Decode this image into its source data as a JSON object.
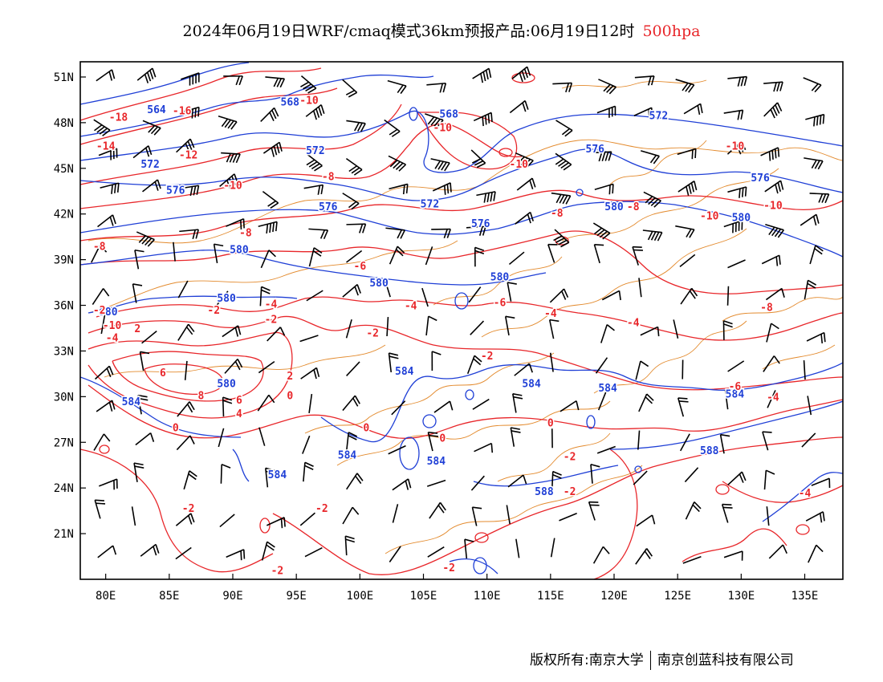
{
  "title": {
    "main": "2024年06月19日WRF/cmaq模式36km预报产品:06月19日12时",
    "level": "500hpa"
  },
  "axes": {
    "x_ticks": [
      "80E",
      "85E",
      "90E",
      "95E",
      "100E",
      "105E",
      "110E",
      "115E",
      "120E",
      "125E",
      "130E",
      "135E"
    ],
    "y_ticks": [
      "51N",
      "48N",
      "45N",
      "42N",
      "39N",
      "36N",
      "33N",
      "30N",
      "27N",
      "24N",
      "21N"
    ]
  },
  "colors": {
    "temperature": "#e8262a",
    "geopotential": "#1f3fd6",
    "boundary": "#e38a2d",
    "wind": "#000000"
  },
  "contour_labels": {
    "geopotential": [
      {
        "text": "564",
        "lon": 84.0,
        "lat": 48.9
      },
      {
        "text": "568",
        "lon": 94.5,
        "lat": 49.4
      },
      {
        "text": "568",
        "lon": 107.0,
        "lat": 48.6
      },
      {
        "text": "572",
        "lon": 83.5,
        "lat": 45.3
      },
      {
        "text": "572",
        "lon": 96.5,
        "lat": 46.2
      },
      {
        "text": "572",
        "lon": 105.5,
        "lat": 42.7
      },
      {
        "text": "572",
        "lon": 123.5,
        "lat": 48.5
      },
      {
        "text": "576",
        "lon": 85.5,
        "lat": 43.6
      },
      {
        "text": "576",
        "lon": 97.5,
        "lat": 42.5
      },
      {
        "text": "576",
        "lon": 109.5,
        "lat": 41.4
      },
      {
        "text": "576",
        "lon": 118.5,
        "lat": 46.3
      },
      {
        "text": "576",
        "lon": 131.5,
        "lat": 44.4
      },
      {
        "text": "580",
        "lon": 90.5,
        "lat": 39.7
      },
      {
        "text": "580",
        "lon": 89.5,
        "lat": 36.5
      },
      {
        "text": "580",
        "lon": 101.5,
        "lat": 37.5
      },
      {
        "text": "580",
        "lon": 111.0,
        "lat": 37.9
      },
      {
        "text": "580",
        "lon": 120.0,
        "lat": 42.5
      },
      {
        "text": "580",
        "lon": 130.0,
        "lat": 41.8
      },
      {
        "text": "580",
        "lon": 80.2,
        "lat": 35.6
      },
      {
        "text": "580",
        "lon": 89.5,
        "lat": 30.9
      },
      {
        "text": "584",
        "lon": 82.0,
        "lat": 29.7
      },
      {
        "text": "584",
        "lon": 93.5,
        "lat": 24.9
      },
      {
        "text": "584",
        "lon": 99.0,
        "lat": 26.2
      },
      {
        "text": "584",
        "lon": 103.5,
        "lat": 31.7
      },
      {
        "text": "584",
        "lon": 106.0,
        "lat": 25.8
      },
      {
        "text": "584",
        "lon": 113.5,
        "lat": 30.9
      },
      {
        "text": "584",
        "lon": 119.5,
        "lat": 30.6
      },
      {
        "text": "584",
        "lon": 129.5,
        "lat": 30.2
      },
      {
        "text": "588",
        "lon": 127.5,
        "lat": 26.5
      },
      {
        "text": "588",
        "lon": 114.5,
        "lat": 23.8
      }
    ],
    "temperature": [
      {
        "text": "-18",
        "lon": 81.0,
        "lat": 48.4
      },
      {
        "text": "-16",
        "lon": 86.0,
        "lat": 48.8
      },
      {
        "text": "-14",
        "lon": 80.0,
        "lat": 46.5
      },
      {
        "text": "-12",
        "lon": 86.5,
        "lat": 45.9
      },
      {
        "text": "-10",
        "lon": 90.0,
        "lat": 43.9
      },
      {
        "text": "-10",
        "lon": 96.0,
        "lat": 49.5
      },
      {
        "text": "-10",
        "lon": 106.5,
        "lat": 47.7
      },
      {
        "text": "-10",
        "lon": 112.5,
        "lat": 45.3
      },
      {
        "text": "-10",
        "lon": 129.5,
        "lat": 46.5
      },
      {
        "text": "-10",
        "lon": 132.5,
        "lat": 42.6
      },
      {
        "text": "-10",
        "lon": 127.5,
        "lat": 41.9
      },
      {
        "text": "-8",
        "lon": 97.5,
        "lat": 44.5
      },
      {
        "text": "-8",
        "lon": 91.0,
        "lat": 40.8
      },
      {
        "text": "-8",
        "lon": 79.5,
        "lat": 39.9
      },
      {
        "text": "-8",
        "lon": 115.5,
        "lat": 42.1
      },
      {
        "text": "-8",
        "lon": 121.5,
        "lat": 42.5
      },
      {
        "text": "-8",
        "lon": 132.0,
        "lat": 35.9
      },
      {
        "text": "-6",
        "lon": 100.0,
        "lat": 38.6
      },
      {
        "text": "-6",
        "lon": 111.0,
        "lat": 36.2
      },
      {
        "text": "-6",
        "lon": 129.5,
        "lat": 30.7
      },
      {
        "text": "-4",
        "lon": 80.5,
        "lat": 33.9
      },
      {
        "text": "-4",
        "lon": 93.0,
        "lat": 36.1
      },
      {
        "text": "-4",
        "lon": 104.0,
        "lat": 36.0
      },
      {
        "text": "-4",
        "lon": 115.0,
        "lat": 35.5
      },
      {
        "text": "-4",
        "lon": 121.5,
        "lat": 34.9
      },
      {
        "text": "-4",
        "lon": 132.5,
        "lat": 30.0
      },
      {
        "text": "-4",
        "lon": 135.0,
        "lat": 23.7
      },
      {
        "text": "-2",
        "lon": 79.5,
        "lat": 35.7
      },
      {
        "text": "-2",
        "lon": 88.5,
        "lat": 35.7
      },
      {
        "text": "-2",
        "lon": 93.0,
        "lat": 35.1
      },
      {
        "text": "-2",
        "lon": 101.0,
        "lat": 34.2
      },
      {
        "text": "-2",
        "lon": 110.0,
        "lat": 32.7
      },
      {
        "text": "-2",
        "lon": 116.5,
        "lat": 26.1
      },
      {
        "text": "-2",
        "lon": 86.5,
        "lat": 22.7
      },
      {
        "text": "-2",
        "lon": 97.0,
        "lat": 22.7
      },
      {
        "text": "-2",
        "lon": 93.5,
        "lat": 18.6
      },
      {
        "text": "-2",
        "lon": 107.0,
        "lat": 18.8
      },
      {
        "text": "-2",
        "lon": 116.5,
        "lat": 23.8
      },
      {
        "text": "-10",
        "lon": 80.5,
        "lat": 34.7
      },
      {
        "text": "0",
        "lon": 94.5,
        "lat": 30.1
      },
      {
        "text": "0",
        "lon": 85.5,
        "lat": 28.0
      },
      {
        "text": "0",
        "lon": 100.5,
        "lat": 28.0
      },
      {
        "text": "0",
        "lon": 106.5,
        "lat": 27.3
      },
      {
        "text": "0",
        "lon": 115.0,
        "lat": 28.3
      },
      {
        "text": "2",
        "lon": 94.5,
        "lat": 31.4
      },
      {
        "text": "2",
        "lon": 82.5,
        "lat": 34.5
      },
      {
        "text": "6",
        "lon": 84.5,
        "lat": 31.6
      },
      {
        "text": "8",
        "lon": 87.5,
        "lat": 30.1
      },
      {
        "text": "6",
        "lon": 90.5,
        "lat": 29.8
      },
      {
        "text": "4",
        "lon": 90.5,
        "lat": 28.9
      }
    ]
  },
  "copyright": {
    "left": "版权所有:南京大学",
    "right": "南京创蓝科技有限公司"
  }
}
